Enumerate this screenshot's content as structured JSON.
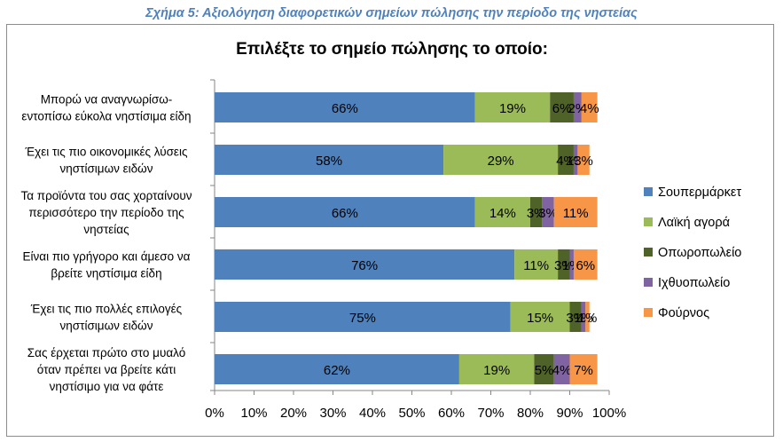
{
  "caption": "Σχήμα 5: Αξιολόγηση διαφορετικών σημείων πώλησης την περίοδο της νηστείας",
  "chart_data": {
    "type": "bar",
    "orientation": "horizontal",
    "stacked": true,
    "title": "Επιλέξτε το σημείο πώλησης το οποίο:",
    "categories": [
      [
        "Μπορώ να αναγνωρίσω-",
        "εντοπίσω εύκολα νηστίσιμα είδη"
      ],
      [
        "Έχει τις πιο οικονομικές λύσεις",
        "νηστίσιμων ειδών"
      ],
      [
        "Τα προϊόντα του σας χορταίνουν",
        "περισσότερο την περίοδο της",
        "νηστείας"
      ],
      [
        "Είναι πιο γρήγορο και άμεσο να",
        "βρείτε νηστίσιμα είδη"
      ],
      [
        "Έχει τις πιο πολλές επιλογές",
        "νηστίσιμων ειδών"
      ],
      [
        "Σας έρχεται πρώτο στο μυαλό",
        "όταν πρέπει να βρείτε κάτι",
        "νηστίσιμο για να φάτε"
      ]
    ],
    "series": [
      {
        "name": "Σουπερμάρκετ",
        "color": "#4f81bd",
        "values": [
          66,
          58,
          66,
          76,
          75,
          62
        ]
      },
      {
        "name": "Λαϊκή αγορά",
        "color": "#9bbb59",
        "values": [
          19,
          29,
          14,
          11,
          15,
          19
        ]
      },
      {
        "name": "Οπωροπωλείο",
        "color": "#4f6228",
        "values": [
          6,
          4,
          3,
          3,
          3,
          5
        ]
      },
      {
        "name": "Ιχθυοπωλείο",
        "color": "#8064a2",
        "values": [
          2,
          1,
          3,
          1,
          1,
          4
        ]
      },
      {
        "name": "Φούρνος",
        "color": "#f79646",
        "values": [
          4,
          3,
          11,
          6,
          1,
          7
        ]
      }
    ],
    "data_labels": [
      [
        "66%",
        "19%",
        "6%",
        "2%",
        "4%"
      ],
      [
        "58%",
        "29%",
        "4%",
        "1%",
        "3%"
      ],
      [
        "66%",
        "14%",
        "3%",
        "3%",
        "11%"
      ],
      [
        "76%",
        "11%",
        "3%",
        "1%",
        "6%"
      ],
      [
        "75%",
        "15%",
        "3%",
        "1%",
        "1%"
      ],
      [
        "62%",
        "19%",
        "5%",
        "4%",
        "7%"
      ]
    ],
    "xlim": [
      0,
      100
    ],
    "x_ticks": [
      "0%",
      "10%",
      "20%",
      "30%",
      "40%",
      "50%",
      "60%",
      "70%",
      "80%",
      "90%",
      "100%"
    ],
    "grid": false,
    "legend_position": "right"
  }
}
